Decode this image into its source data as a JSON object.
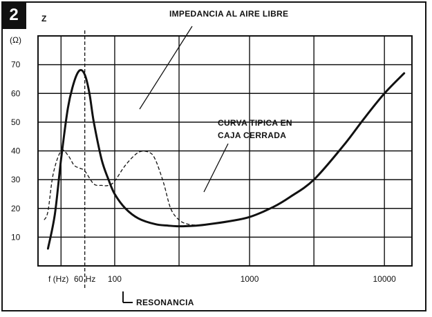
{
  "figure_number": "2",
  "chart_data": {
    "type": "line",
    "x_scale": "log",
    "y_unit_symbol": "Z",
    "y_unit_label": "(Ω)",
    "x_unit_label": "f (Hz)",
    "xlim": [
      27,
      16000
    ],
    "ylim": [
      0,
      80
    ],
    "yticks": [
      10,
      20,
      30,
      40,
      50,
      60,
      70
    ],
    "xticks": [
      {
        "value": 100,
        "label": "100"
      },
      {
        "value": 1000,
        "label": "1000"
      },
      {
        "value": 10000,
        "label": "10000"
      }
    ],
    "x_gridlines": [
      40,
      100,
      300,
      1000,
      3000,
      10000
    ],
    "resonance": {
      "value": 60,
      "tick_label": "60 Hz",
      "caption": "RESONANCIA"
    },
    "grid": true,
    "series": [
      {
        "name": "IMPEDANCIA AL AIRE LIBRE",
        "style": "solid",
        "x": [
          32,
          36,
          40,
          45,
          50,
          55,
          60,
          65,
          70,
          80,
          90,
          100,
          120,
          150,
          200,
          250,
          300,
          400,
          500,
          700,
          1000,
          1500,
          2000,
          3000,
          5000,
          7000,
          10000,
          14000
        ],
        "y": [
          6,
          18,
          37,
          55,
          64,
          68,
          66.5,
          60,
          50,
          37,
          30,
          25,
          20,
          16.5,
          14.5,
          14,
          13.8,
          14,
          14.5,
          15.5,
          17,
          20.5,
          24,
          30,
          42,
          51,
          60,
          67
        ]
      },
      {
        "name": "CURVA TIPICA EN CAJA CERRADA",
        "style": "dashed",
        "x": [
          30,
          32,
          35,
          40,
          45,
          50,
          55,
          60,
          70,
          80,
          90,
          100,
          120,
          150,
          180,
          200,
          230,
          260,
          300,
          350,
          450
        ],
        "y": [
          16,
          19,
          32,
          40,
          38.5,
          35,
          34,
          33,
          28.5,
          28,
          28,
          29.5,
          35,
          39.5,
          39.5,
          37,
          29,
          20,
          16,
          14.5,
          14
        ]
      }
    ],
    "annotations": [
      "IMPEDANCIA AL AIRE LIBRE",
      "CURVA TIPICA EN CAJA CERRADA"
    ]
  }
}
